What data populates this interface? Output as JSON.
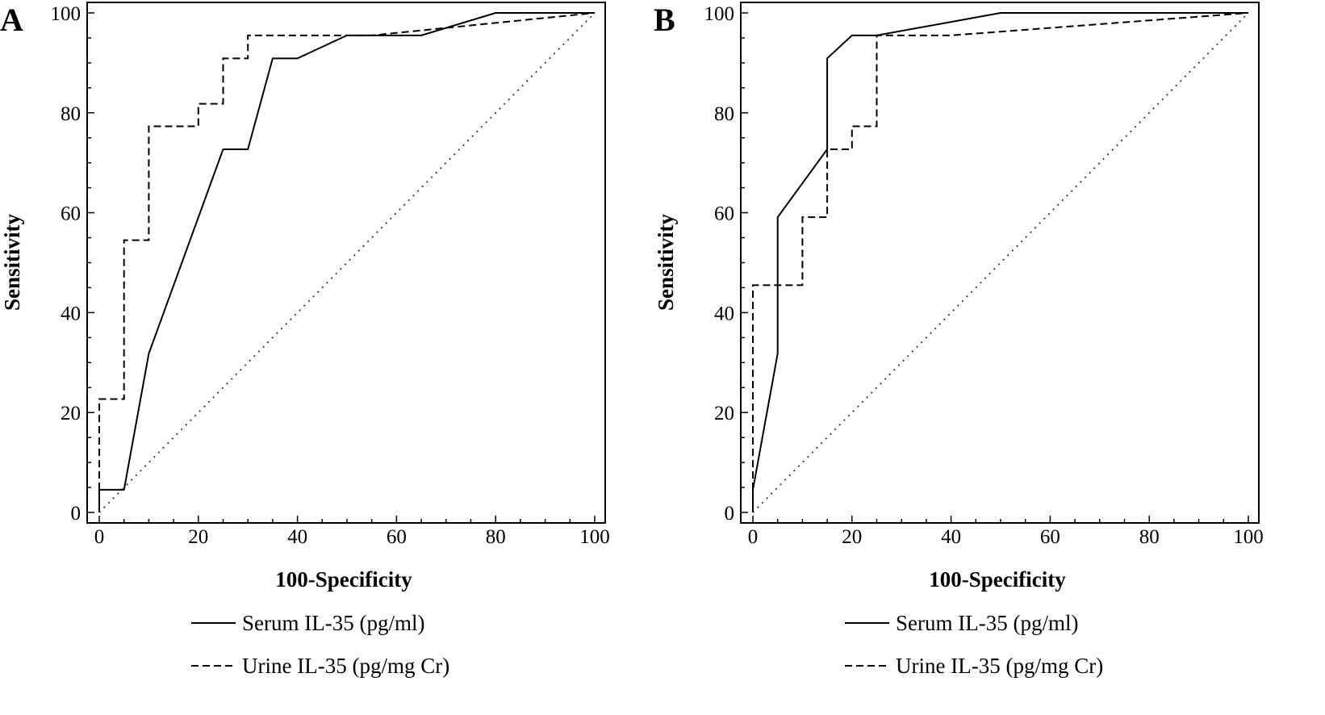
{
  "chart_data": [
    {
      "type": "line",
      "panel_label": "A",
      "xlabel": "100-Specificity",
      "ylabel": "Sensitivity",
      "xlim": [
        0,
        100
      ],
      "ylim": [
        0,
        100
      ],
      "xticks": [
        "0",
        "20",
        "40",
        "60",
        "80",
        "100"
      ],
      "yticks": [
        "0",
        "20",
        "40",
        "60",
        "80",
        "100"
      ],
      "grid": false,
      "legend_placement": "bottom",
      "reference_line": "diagonal dotted",
      "series": [
        {
          "name": "Serum IL-35 (pg/ml)",
          "style": "solid",
          "x": [
            0,
            0,
            5,
            10,
            25,
            30,
            35,
            40,
            50,
            65,
            80,
            100
          ],
          "y": [
            0,
            4.55,
            4.55,
            31.8,
            72.7,
            72.7,
            90.9,
            90.9,
            95.5,
            95.5,
            100,
            100
          ]
        },
        {
          "name": "Urine IL-35 (pg/mg Cr)",
          "style": "dashed",
          "x": [
            0,
            0,
            5,
            5,
            10,
            10,
            20,
            20,
            25,
            25,
            30,
            30,
            55,
            100
          ],
          "y": [
            0,
            22.7,
            22.7,
            54.5,
            54.5,
            77.3,
            77.3,
            81.8,
            81.8,
            90.9,
            90.9,
            95.5,
            95.5,
            100
          ]
        }
      ]
    },
    {
      "type": "line",
      "panel_label": "B",
      "xlabel": "100-Specificity",
      "ylabel": "Sensitivity",
      "xlim": [
        0,
        100
      ],
      "ylim": [
        0,
        100
      ],
      "xticks": [
        "0",
        "20",
        "40",
        "60",
        "80",
        "100"
      ],
      "yticks": [
        "0",
        "20",
        "40",
        "60",
        "80",
        "100"
      ],
      "grid": false,
      "legend_placement": "bottom",
      "reference_line": "diagonal dotted",
      "series": [
        {
          "name": "Serum IL-35 (pg/ml)",
          "style": "solid",
          "x": [
            0,
            0,
            5,
            5,
            15,
            15,
            20,
            25,
            50,
            100
          ],
          "y": [
            0,
            4.55,
            31.8,
            59.1,
            72.7,
            90.9,
            95.5,
            95.5,
            100,
            100
          ]
        },
        {
          "name": "Urine IL-35 (pg/mg Cr)",
          "style": "dashed",
          "x": [
            0,
            0,
            10,
            10,
            15,
            15,
            20,
            20,
            25,
            25,
            40,
            100
          ],
          "y": [
            0,
            45.5,
            45.5,
            59.1,
            59.1,
            72.7,
            72.7,
            77.3,
            77.3,
            95.5,
            95.5,
            100
          ]
        }
      ]
    }
  ]
}
